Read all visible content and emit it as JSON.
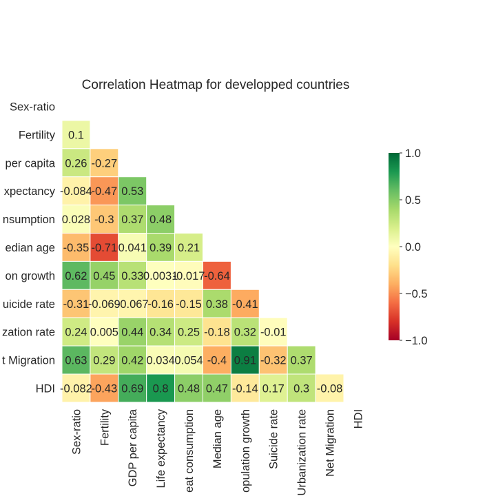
{
  "chart_data": {
    "type": "heatmap",
    "title": "Correlation Heatmap for developped countries",
    "variables": [
      "Sex-ratio",
      "Fertility",
      "GDP per capita",
      "Life expectancy",
      "Meat consumption",
      "Median age",
      "Population growth",
      "Suicide rate",
      "Urbanization rate",
      "Net Migration",
      "HDI"
    ],
    "row_labels_visible": [
      "Sex-ratio",
      "Fertility",
      "per capita",
      "xpectancy",
      "nsumption",
      "edian age",
      "on growth",
      "uicide rate",
      "zation rate",
      "t Migration",
      "HDI"
    ],
    "col_labels_visible": [
      "Sex-ratio",
      "Fertility",
      "GDP per capita",
      "Life expectancy",
      "eat consumption",
      "Median age",
      "opulation growth",
      "Suicide rate",
      "Urbanization rate",
      "Net Migration",
      "HDI"
    ],
    "mask": "upper triangle including diagonal",
    "cells": [
      {
        "row": 1,
        "col": 0,
        "label": "0.1",
        "value": 0.1
      },
      {
        "row": 2,
        "col": 0,
        "label": "0.26",
        "value": 0.26
      },
      {
        "row": 2,
        "col": 1,
        "label": "-0.27",
        "value": -0.27
      },
      {
        "row": 3,
        "col": 0,
        "label": "-0.084",
        "value": -0.084
      },
      {
        "row": 3,
        "col": 1,
        "label": "-0.47",
        "value": -0.47
      },
      {
        "row": 3,
        "col": 2,
        "label": "0.53",
        "value": 0.53
      },
      {
        "row": 4,
        "col": 0,
        "label": "0.028",
        "value": 0.028
      },
      {
        "row": 4,
        "col": 1,
        "label": "-0.3",
        "value": -0.3
      },
      {
        "row": 4,
        "col": 2,
        "label": "0.37",
        "value": 0.37
      },
      {
        "row": 4,
        "col": 3,
        "label": "0.48",
        "value": 0.48
      },
      {
        "row": 5,
        "col": 0,
        "label": "-0.35",
        "value": -0.35
      },
      {
        "row": 5,
        "col": 1,
        "label": "-0.71",
        "value": -0.71
      },
      {
        "row": 5,
        "col": 2,
        "label": "0.041",
        "value": 0.041
      },
      {
        "row": 5,
        "col": 3,
        "label": "0.39",
        "value": 0.39
      },
      {
        "row": 5,
        "col": 4,
        "label": "0.21",
        "value": 0.21
      },
      {
        "row": 6,
        "col": 0,
        "label": "0.62",
        "value": 0.62
      },
      {
        "row": 6,
        "col": 1,
        "label": "0.45",
        "value": 0.45
      },
      {
        "row": 6,
        "col": 2,
        "label": "0.33",
        "value": 0.33
      },
      {
        "row": 6,
        "col": 3,
        "label": "0.0031",
        "value": 0.0031
      },
      {
        "row": 6,
        "col": 4,
        "label": "-0.017",
        "value": -0.017
      },
      {
        "row": 6,
        "col": 5,
        "label": "-0.64",
        "value": -0.64
      },
      {
        "row": 7,
        "col": 0,
        "label": "-0.31",
        "value": -0.31
      },
      {
        "row": 7,
        "col": 1,
        "label": "-0.069",
        "value": -0.069
      },
      {
        "row": 7,
        "col": 2,
        "label": "-0.067",
        "value": -0.067
      },
      {
        "row": 7,
        "col": 3,
        "label": "-0.16",
        "value": -0.16
      },
      {
        "row": 7,
        "col": 4,
        "label": "-0.15",
        "value": -0.15
      },
      {
        "row": 7,
        "col": 5,
        "label": "0.38",
        "value": 0.38
      },
      {
        "row": 7,
        "col": 6,
        "label": "-0.41",
        "value": -0.41
      },
      {
        "row": 8,
        "col": 0,
        "label": "0.24",
        "value": 0.24
      },
      {
        "row": 8,
        "col": 1,
        "label": "0.005",
        "value": 0.005
      },
      {
        "row": 8,
        "col": 2,
        "label": "0.44",
        "value": 0.44
      },
      {
        "row": 8,
        "col": 3,
        "label": "0.34",
        "value": 0.34
      },
      {
        "row": 8,
        "col": 4,
        "label": "0.25",
        "value": 0.25
      },
      {
        "row": 8,
        "col": 5,
        "label": "-0.18",
        "value": -0.18
      },
      {
        "row": 8,
        "col": 6,
        "label": "0.32",
        "value": 0.32
      },
      {
        "row": 8,
        "col": 7,
        "label": "-0.01",
        "value": -0.01
      },
      {
        "row": 9,
        "col": 0,
        "label": "0.63",
        "value": 0.63
      },
      {
        "row": 9,
        "col": 1,
        "label": "0.29",
        "value": 0.29
      },
      {
        "row": 9,
        "col": 2,
        "label": "0.42",
        "value": 0.42
      },
      {
        "row": 9,
        "col": 3,
        "label": "0.034",
        "value": 0.034
      },
      {
        "row": 9,
        "col": 4,
        "label": "0.054",
        "value": 0.054
      },
      {
        "row": 9,
        "col": 5,
        "label": "-0.4",
        "value": -0.4
      },
      {
        "row": 9,
        "col": 6,
        "label": "0.91",
        "value": 0.91
      },
      {
        "row": 9,
        "col": 7,
        "label": "-0.32",
        "value": -0.32
      },
      {
        "row": 9,
        "col": 8,
        "label": "0.37",
        "value": 0.37
      },
      {
        "row": 10,
        "col": 0,
        "label": "-0.082",
        "value": -0.082
      },
      {
        "row": 10,
        "col": 1,
        "label": "-0.43",
        "value": -0.43
      },
      {
        "row": 10,
        "col": 2,
        "label": "0.69",
        "value": 0.69
      },
      {
        "row": 10,
        "col": 3,
        "label": "0.8",
        "value": 0.8
      },
      {
        "row": 10,
        "col": 4,
        "label": "0.48",
        "value": 0.48
      },
      {
        "row": 10,
        "col": 5,
        "label": "0.47",
        "value": 0.47
      },
      {
        "row": 10,
        "col": 6,
        "label": "-0.14",
        "value": -0.14
      },
      {
        "row": 10,
        "col": 7,
        "label": "0.17",
        "value": 0.17
      },
      {
        "row": 10,
        "col": 8,
        "label": "0.3",
        "value": 0.3
      },
      {
        "row": 10,
        "col": 9,
        "label": "-0.08",
        "value": -0.08
      }
    ],
    "colormap": "RdYlGn",
    "vmin": -1.0,
    "vmax": 1.0,
    "colorbar_ticks": [
      "1.0",
      "0.5",
      "0.0",
      "−0.5",
      "−1.0"
    ],
    "colorbar_tick_values": [
      1.0,
      0.5,
      0.0,
      -0.5,
      -1.0
    ]
  }
}
